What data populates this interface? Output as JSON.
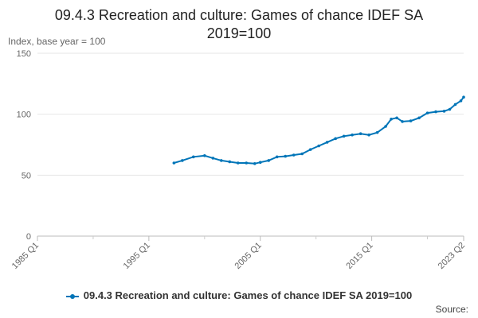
{
  "chart_data": {
    "type": "line",
    "title_lines": [
      "09.4.3 Recreation and culture: Games of chance IDEF SA",
      "2019=100"
    ],
    "ylabel": "Index, base year = 100",
    "ylim": [
      0,
      150
    ],
    "yticks": [
      0,
      50,
      100,
      150
    ],
    "xlim": [
      1985.0,
      2023.25
    ],
    "xticks": [
      {
        "label": "1985 Q1",
        "value": 1985.0
      },
      {
        "label": "1995 Q1",
        "value": 1995.0
      },
      {
        "label": "2005 Q1",
        "value": 2005.0
      },
      {
        "label": "2015 Q1",
        "value": 2015.0
      },
      {
        "label": "2023 Q2",
        "value": 2023.25
      }
    ],
    "grid": true,
    "legend_position": "bottom",
    "series": [
      {
        "name": "09.4.3 Recreation and culture: Games of chance IDEF SA 2019=100",
        "color": "#0075b8",
        "x": [
          1997.25,
          1998.0,
          1999.0,
          2000.0,
          2000.75,
          2001.5,
          2002.25,
          2003.0,
          2003.75,
          2004.5,
          2005.0,
          2005.75,
          2006.5,
          2007.25,
          2008.0,
          2008.75,
          2009.5,
          2010.25,
          2011.0,
          2011.75,
          2012.5,
          2013.25,
          2014.0,
          2014.75,
          2015.5,
          2016.25,
          2016.75,
          2017.25,
          2017.75,
          2018.5,
          2019.25,
          2020.0,
          2020.75,
          2021.5,
          2022.0,
          2022.5,
          2023.0,
          2023.25
        ],
        "y": [
          60,
          62,
          65,
          66,
          64,
          62,
          61,
          60,
          60,
          59.5,
          60.5,
          62,
          65,
          65.5,
          66.5,
          67.5,
          71,
          74,
          77,
          80,
          82,
          83,
          84,
          83,
          85,
          90,
          96,
          97,
          94,
          94.5,
          97,
          101,
          102,
          102.5,
          104,
          108,
          111,
          114
        ]
      }
    ],
    "source_label": "Source:"
  }
}
